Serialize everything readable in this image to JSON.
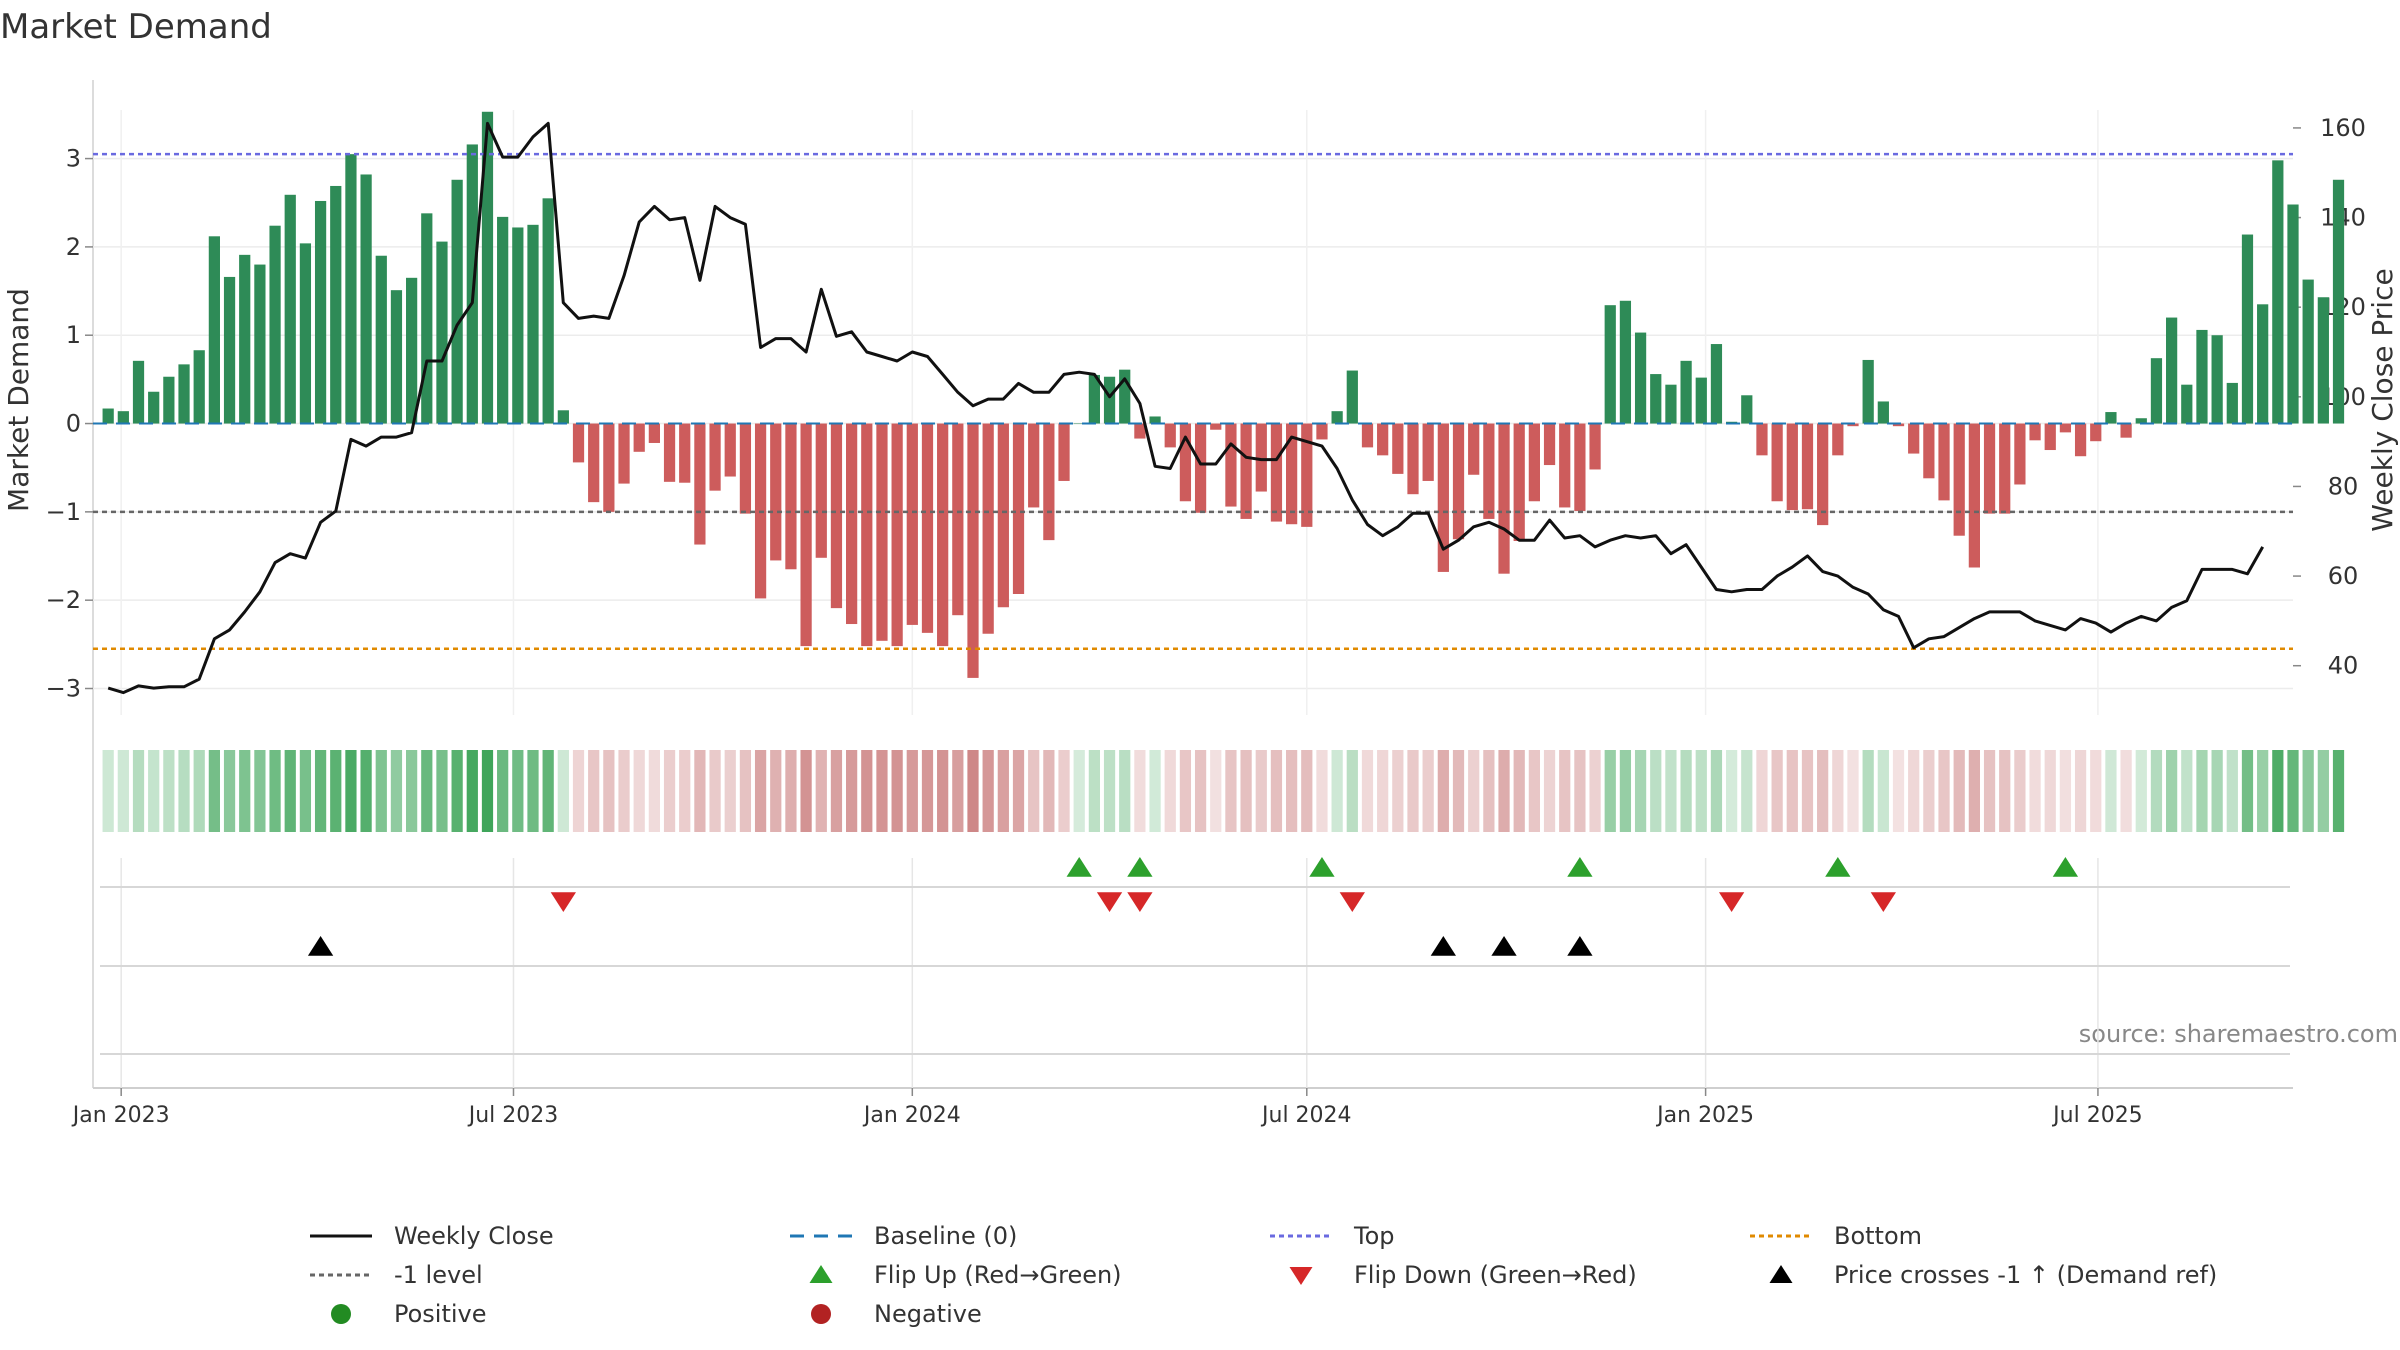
{
  "chart_data": {
    "type": "bar+line",
    "title": "Market Demand",
    "ylabel_left": "Market Demand",
    "ylabel_right": "Weekly Close Price",
    "source": "source: sharemaestro.com",
    "xlim": [
      "2022-12-19",
      "2025-09-29"
    ],
    "x_ticks": [
      {
        "date": "2023-01-01",
        "label": "Jan 2023"
      },
      {
        "date": "2023-07-01",
        "label": "Jul 2023"
      },
      {
        "date": "2024-01-01",
        "label": "Jan 2024"
      },
      {
        "date": "2024-07-01",
        "label": "Jul 2024"
      },
      {
        "date": "2025-01-01",
        "label": "Jan 2025"
      },
      {
        "date": "2025-07-01",
        "label": "Jul 2025"
      }
    ],
    "left_axis": {
      "ylim": [
        -3.3,
        3.55
      ],
      "ticks": [
        3,
        2,
        1,
        0,
        -1,
        -2,
        -3
      ],
      "tick_labels": [
        "3",
        "2",
        "1",
        "0",
        "−1",
        "−2",
        "−3"
      ]
    },
    "right_axis": {
      "ylim": [
        29,
        164
      ],
      "ticks": [
        160,
        140,
        120,
        100,
        80,
        60,
        40
      ],
      "tick_labels": [
        "160",
        "140",
        "120",
        "100",
        "80",
        "60",
        "40"
      ]
    },
    "first_week": "2022-12-26",
    "week_step_days": 7,
    "demand": [
      0.17,
      0.14,
      0.71,
      0.36,
      0.53,
      0.67,
      0.83,
      2.12,
      1.66,
      1.91,
      1.8,
      2.24,
      2.59,
      2.04,
      2.52,
      2.69,
      3.05,
      2.82,
      1.9,
      1.51,
      1.65,
      2.38,
      2.06,
      2.76,
      3.16,
      3.53,
      2.34,
      2.22,
      2.25,
      2.55,
      0.15,
      -0.44,
      -0.89,
      -1.0,
      -0.68,
      -0.32,
      -0.22,
      -0.66,
      -0.67,
      -1.37,
      -0.76,
      -0.6,
      -1.02,
      -1.98,
      -1.55,
      -1.65,
      -2.52,
      -1.52,
      -2.09,
      -2.27,
      -2.52,
      -2.46,
      -2.52,
      -2.28,
      -2.37,
      -2.52,
      -2.17,
      -2.88,
      -2.38,
      -2.08,
      -1.93,
      -0.95,
      -1.32,
      -0.65,
      0.0,
      0.55,
      0.53,
      0.61,
      -0.17,
      0.08,
      -0.27,
      -0.88,
      -1.01,
      -0.07,
      -0.94,
      -1.08,
      -0.77,
      -1.11,
      -1.14,
      -1.17,
      -0.18,
      0.14,
      0.6,
      -0.27,
      -0.36,
      -0.57,
      -0.8,
      -0.65,
      -1.68,
      -1.31,
      -0.58,
      -1.08,
      -1.7,
      -1.33,
      -0.88,
      -0.47,
      -0.95,
      -0.99,
      -0.52,
      1.34,
      1.39,
      1.03,
      0.56,
      0.44,
      0.71,
      0.52,
      0.9,
      0.02,
      0.32,
      -0.36,
      -0.88,
      -0.98,
      -0.97,
      -1.15,
      -0.36,
      -0.03,
      0.72,
      0.25,
      -0.03,
      -0.34,
      -0.62,
      -0.87,
      -1.27,
      -1.63,
      -1.02,
      -1.02,
      -0.69,
      -0.19,
      -0.3,
      -0.1,
      -0.37,
      -0.2,
      0.13,
      -0.16,
      0.06,
      0.74,
      1.2,
      0.44,
      1.06,
      1.0,
      0.46,
      2.14,
      1.35,
      2.98,
      2.48,
      1.63,
      1.43,
      2.76
    ],
    "close": [
      35.0,
      34.0,
      35.5,
      35.0,
      35.3,
      35.3,
      37.0,
      46.0,
      48.0,
      52.0,
      56.5,
      63.0,
      65.0,
      64.0,
      72.0,
      74.5,
      90.5,
      89.0,
      91.0,
      91.0,
      92.0,
      108.0,
      108.0,
      116.0,
      121.0,
      161.0,
      153.5,
      153.5,
      158.0,
      161.0,
      121.0,
      117.5,
      118.0,
      117.5,
      127.0,
      139.0,
      142.5,
      139.5,
      140.0,
      126.0,
      142.5,
      140.0,
      138.5,
      111.0,
      113.0,
      113.0,
      110.0,
      124.0,
      113.5,
      114.5,
      110.0,
      109.0,
      108.0,
      110.0,
      109.0,
      105.0,
      101.0,
      98.0,
      99.5,
      99.5,
      103.0,
      101.0,
      101.0,
      105.0,
      105.5,
      105.0,
      100.0,
      104.0,
      98.5,
      84.5,
      84.0,
      91.0,
      85.0,
      85.0,
      89.5,
      86.5,
      86.0,
      86.0,
      91.0,
      90.0,
      89.0,
      84.0,
      77.0,
      71.5,
      69.0,
      71.0,
      74.0,
      74.0,
      66.0,
      68.0,
      71.0,
      72.0,
      70.5,
      68.0,
      68.0,
      72.5,
      68.5,
      69.0,
      66.5,
      68.0,
      69.0,
      68.5,
      69.0,
      65.0,
      67.0,
      62.0,
      57.0,
      56.5,
      57.0,
      57.0,
      60.0,
      62.0,
      64.5,
      61.0,
      60.0,
      57.5,
      56.0,
      52.5,
      51.0,
      44.0,
      46.0,
      46.5,
      48.5,
      50.5,
      52.0,
      52.0,
      52.0,
      50.0,
      49.0,
      48.0,
      50.5,
      49.5,
      47.5,
      49.5,
      51.0,
      50.0,
      53.0,
      54.5,
      61.5,
      61.5,
      61.5,
      60.5,
      66.5
    ],
    "levels": {
      "top": 3.05,
      "bottom": -2.55,
      "minus_one": -1,
      "baseline": 0
    },
    "flip_up_weeks": [
      64,
      68,
      80,
      97,
      114,
      129
    ],
    "flip_down_weeks": [
      30,
      66,
      68,
      82,
      107,
      117
    ],
    "cross_up_weeks": [
      14,
      88,
      92,
      97
    ],
    "colors": {
      "positive": "#2e8b57",
      "negative": "#cd5c5c",
      "close": "#111111",
      "baseline": "#1f77b4",
      "top": "#6a6ae0",
      "bottom": "#e08a00",
      "minus_one": "#666666",
      "flip_up": "#2ca02c",
      "flip_down": "#d62728",
      "cross": "#000000",
      "pos_dot": "#228b22",
      "neg_dot": "#b22222"
    },
    "legend": [
      {
        "label": "Weekly Close",
        "kind": "line",
        "color": "#111111"
      },
      {
        "label": "Baseline (0)",
        "kind": "dash",
        "color": "#1f77b4"
      },
      {
        "label": "Top",
        "kind": "dot",
        "color": "#6a6ae0"
      },
      {
        "label": "Bottom",
        "kind": "dot",
        "color": "#e08a00"
      },
      {
        "label": "-1 level",
        "kind": "dot",
        "color": "#666666"
      },
      {
        "label": "Flip Up (Red→Green)",
        "kind": "tri-up",
        "color": "#2ca02c"
      },
      {
        "label": "Flip Down (Green→Red)",
        "kind": "tri-down",
        "color": "#d62728"
      },
      {
        "label": "Price crosses -1 ↑ (Demand ref)",
        "kind": "tri-up",
        "color": "#000000"
      },
      {
        "label": "Positive",
        "kind": "circle",
        "color": "#228b22"
      },
      {
        "label": "Negative",
        "kind": "circle",
        "color": "#b22222"
      }
    ]
  }
}
